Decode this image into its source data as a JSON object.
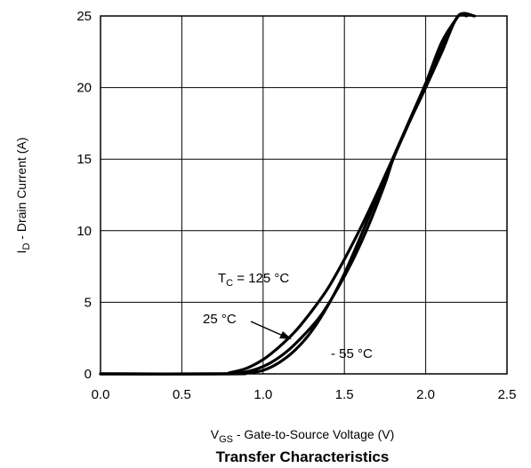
{
  "chart_data": {
    "type": "line",
    "title": "Transfer Characteristics",
    "xlabel": {
      "main": "V",
      "sub": "GS",
      "rest": " - Gate-to-Source Voltage (V)"
    },
    "ylabel": {
      "main": "I",
      "sub": "D",
      "rest": " - Drain Current (A)"
    },
    "xlim": [
      0,
      2.5
    ],
    "ylim": [
      0,
      25
    ],
    "x_ticks": [
      "0.0",
      "0.5",
      "1.0",
      "1.5",
      "2.0",
      "2.5"
    ],
    "x_tick_values": [
      0,
      0.5,
      1.0,
      1.5,
      2.0,
      2.5
    ],
    "y_ticks": [
      "0",
      "5",
      "10",
      "15",
      "20",
      "25"
    ],
    "y_tick_values": [
      0,
      5,
      10,
      15,
      20,
      25
    ],
    "x_grid": [
      0.5,
      1.0,
      1.5,
      2.0
    ],
    "y_grid": [
      5,
      10,
      15,
      20
    ],
    "grid": true,
    "series": [
      {
        "name": "125 °C",
        "x": [
          0,
          0.7,
          0.8,
          0.9,
          1.0,
          1.1,
          1.2,
          1.3,
          1.4,
          1.5,
          1.6,
          1.7,
          1.8,
          1.9,
          2.0,
          2.1,
          2.2
        ],
        "y": [
          0,
          0,
          0.1,
          0.4,
          1.0,
          1.9,
          3.0,
          4.4,
          6.0,
          8.0,
          10.2,
          12.6,
          15.1,
          17.7,
          20.3,
          23.2,
          25.0
        ]
      },
      {
        "name": "25 °C",
        "x": [
          0,
          0.75,
          0.85,
          0.95,
          1.05,
          1.15,
          1.25,
          1.35,
          1.45,
          1.55,
          1.65,
          1.75,
          1.8,
          1.9,
          2.0,
          2.1,
          2.2,
          2.25
        ],
        "y": [
          0,
          0,
          0.05,
          0.3,
          0.8,
          1.6,
          2.7,
          4.0,
          5.8,
          7.9,
          10.4,
          13.3,
          15.0,
          17.6,
          20.2,
          22.9,
          25.0,
          25.0
        ]
      },
      {
        "name": "- 55 °C",
        "x": [
          0,
          0.8,
          0.9,
          1.0,
          1.1,
          1.2,
          1.3,
          1.4,
          1.5,
          1.6,
          1.7,
          1.8,
          1.9,
          2.0,
          2.1,
          2.2,
          2.3
        ],
        "y": [
          0,
          0,
          0.05,
          0.25,
          0.8,
          1.7,
          3.0,
          4.8,
          7.0,
          9.6,
          12.3,
          15.1,
          17.6,
          20.0,
          22.5,
          25.0,
          25.0
        ]
      }
    ],
    "annotations": [
      {
        "main": "T",
        "sub": "C",
        "rest": " = 125 °C"
      },
      {
        "main": "25 °C"
      },
      {
        "main": "- 55 °C"
      }
    ]
  }
}
